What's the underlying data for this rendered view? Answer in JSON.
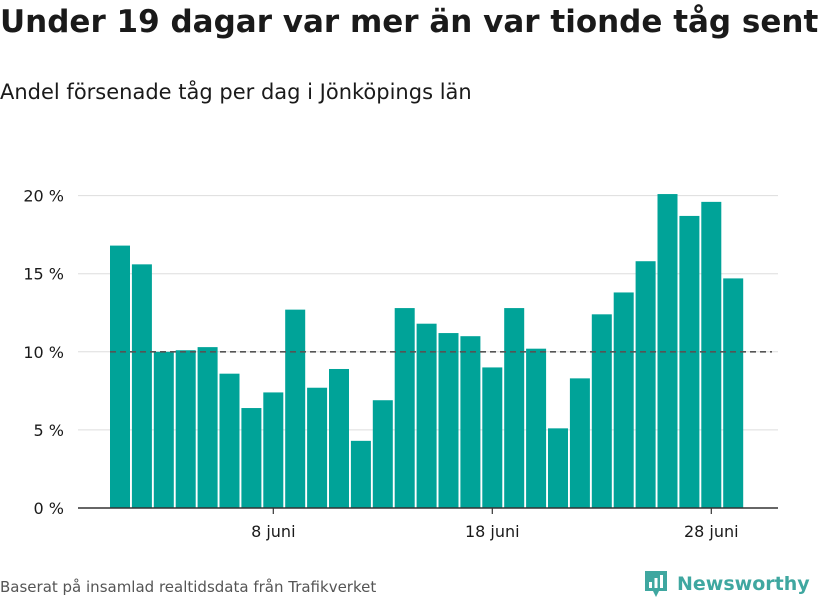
{
  "title": "Under 19 dagar var mer än var tionde tåg sent",
  "subtitle": "Andel försenade tåg per dag i Jönköpings län",
  "footer": "Baserat på insamlad realtidsdata från Trafikverket",
  "brand": {
    "name": "Newsworthy",
    "color": "#3fa7a0"
  },
  "colors": {
    "bar": "#00a398",
    "grid": "#dddddd",
    "axis": "#333333",
    "reference": "#555555",
    "text": "#1a1a1a"
  },
  "chart_data": {
    "type": "bar",
    "title": "Under 19 dagar var mer än var tionde tåg sent",
    "subtitle": "Andel försenade tåg per dag i Jönköpings län",
    "xlabel": "",
    "ylabel": "",
    "x_unit": "day of June",
    "categories": [
      1,
      2,
      3,
      4,
      5,
      6,
      7,
      8,
      9,
      10,
      11,
      12,
      13,
      14,
      15,
      16,
      17,
      18,
      19,
      20,
      21,
      22,
      23,
      24,
      25,
      26,
      27,
      28,
      29
    ],
    "values": [
      16.8,
      15.6,
      10.0,
      10.1,
      10.3,
      8.6,
      6.4,
      7.4,
      12.7,
      7.7,
      8.9,
      4.3,
      6.9,
      12.8,
      11.8,
      11.2,
      11.0,
      9.0,
      12.8,
      10.2,
      5.1,
      8.3,
      12.4,
      13.8,
      15.8,
      20.1,
      18.7,
      19.6,
      14.7
    ],
    "ylim": [
      0,
      21
    ],
    "yticks": [
      {
        "value": 0,
        "label": "0 %"
      },
      {
        "value": 5,
        "label": "5 %"
      },
      {
        "value": 10,
        "label": "10 %"
      },
      {
        "value": 15,
        "label": "15 %"
      },
      {
        "value": 20,
        "label": "20 %"
      }
    ],
    "xticks": [
      {
        "day": 8,
        "label": "8 juni"
      },
      {
        "day": 18,
        "label": "18 juni"
      },
      {
        "day": 28,
        "label": "28 juni"
      }
    ],
    "reference_line": {
      "value": 10,
      "style": "dashed"
    },
    "grid": true,
    "legend": "none"
  }
}
